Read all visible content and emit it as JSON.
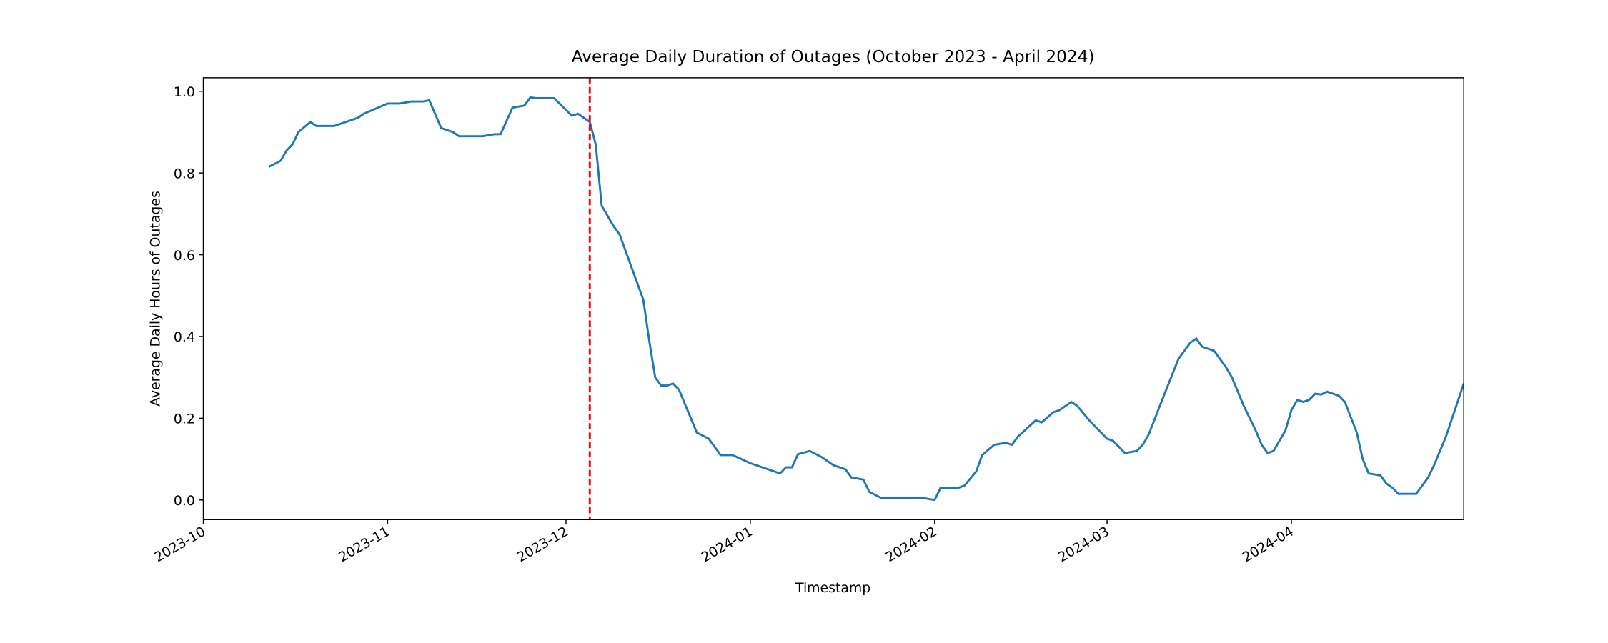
{
  "chart_data": {
    "type": "line",
    "title": "Average Daily Duration of Outages (October 2023 - April 2024)",
    "x_label": "Timestamp",
    "y_label": "Average Daily Hours of Outages",
    "xlim": [
      "2023-10-01",
      "2024-04-30"
    ],
    "ylim": [
      -0.048,
      1.033
    ],
    "xticks": [
      {
        "value": "2023-10-01",
        "label": "2023-10"
      },
      {
        "value": "2023-11-01",
        "label": "2023-11"
      },
      {
        "value": "2023-12-01",
        "label": "2023-12"
      },
      {
        "value": "2024-01-01",
        "label": "2024-01"
      },
      {
        "value": "2024-02-01",
        "label": "2024-02"
      },
      {
        "value": "2024-03-01",
        "label": "2024-03"
      },
      {
        "value": "2024-04-01",
        "label": "2024-04"
      }
    ],
    "yticks": [
      {
        "value": 0,
        "label": "0.0"
      },
      0.2,
      0.4,
      0.6,
      0.8,
      {
        "value": 1,
        "label": "1.0"
      }
    ],
    "vline": {
      "x": "2023-12-05",
      "color": "#ff0000",
      "dashed": true
    },
    "series": [
      {
        "color": "#1f77b4",
        "x": [
          "2023-10-12",
          "2023-10-14",
          "2023-10-15",
          "2023-10-16",
          "2023-10-17",
          "2023-10-19",
          "2023-10-20",
          "2023-10-23",
          "2023-10-24",
          "2023-10-27",
          "2023-10-28",
          "2023-11-01",
          "2023-11-03",
          "2023-11-05",
          "2023-11-07",
          "2023-11-08",
          "2023-11-10",
          "2023-11-12",
          "2023-11-13",
          "2023-11-17",
          "2023-11-19",
          "2023-11-20",
          "2023-11-22",
          "2023-11-24",
          "2023-11-25",
          "2023-11-26",
          "2023-11-29",
          "2023-12-02",
          "2023-12-03",
          "2023-12-05",
          "2023-12-06",
          "2023-12-07",
          "2023-12-09",
          "2023-12-10",
          "2023-12-14",
          "2023-12-15",
          "2023-12-16",
          "2023-12-17",
          "2023-12-18",
          "2023-12-19",
          "2023-12-20",
          "2023-12-23",
          "2023-12-25",
          "2023-12-27",
          "2023-12-29",
          "2024-01-01",
          "2024-01-03",
          "2024-01-06",
          "2024-01-07",
          "2024-01-08",
          "2024-01-09",
          "2024-01-11",
          "2024-01-13",
          "2024-01-15",
          "2024-01-17",
          "2024-01-18",
          "2024-01-20",
          "2024-01-21",
          "2024-01-23",
          "2024-01-26",
          "2024-01-30",
          "2024-02-01",
          "2024-02-02",
          "2024-02-05",
          "2024-02-06",
          "2024-02-08",
          "2024-02-09",
          "2024-02-11",
          "2024-02-13",
          "2024-02-14",
          "2024-02-15",
          "2024-02-18",
          "2024-02-19",
          "2024-02-21",
          "2024-02-22",
          "2024-02-24",
          "2024-02-25",
          "2024-02-27",
          "2024-03-01",
          "2024-03-02",
          "2024-03-04",
          "2024-03-06",
          "2024-03-07",
          "2024-03-08",
          "2024-03-10",
          "2024-03-13",
          "2024-03-15",
          "2024-03-16",
          "2024-03-17",
          "2024-03-19",
          "2024-03-20",
          "2024-03-21",
          "2024-03-22",
          "2024-03-24",
          "2024-03-26",
          "2024-03-27",
          "2024-03-28",
          "2024-03-29",
          "2024-03-31",
          "2024-04-01",
          "2024-04-02",
          "2024-04-03",
          "2024-04-04",
          "2024-04-05",
          "2024-04-06",
          "2024-04-07",
          "2024-04-09",
          "2024-04-10",
          "2024-04-12",
          "2024-04-13",
          "2024-04-14",
          "2024-04-16",
          "2024-04-17",
          "2024-04-18",
          "2024-04-19",
          "2024-04-22",
          "2024-04-24",
          "2024-04-25",
          "2024-04-27",
          "2024-04-30"
        ],
        "values": [
          0.815,
          0.83,
          0.855,
          0.87,
          0.9,
          0.925,
          0.915,
          0.915,
          0.92,
          0.935,
          0.945,
          0.97,
          0.97,
          0.975,
          0.975,
          0.978,
          0.91,
          0.9,
          0.89,
          0.89,
          0.895,
          0.895,
          0.96,
          0.965,
          0.985,
          0.983,
          0.983,
          0.94,
          0.945,
          0.925,
          0.87,
          0.72,
          0.67,
          0.65,
          0.49,
          0.39,
          0.3,
          0.28,
          0.28,
          0.285,
          0.27,
          0.165,
          0.15,
          0.11,
          0.11,
          0.09,
          0.08,
          0.065,
          0.08,
          0.08,
          0.112,
          0.12,
          0.105,
          0.085,
          0.075,
          0.055,
          0.05,
          0.02,
          0.005,
          0.005,
          0.005,
          0.0,
          0.03,
          0.03,
          0.035,
          0.07,
          0.11,
          0.135,
          0.14,
          0.135,
          0.155,
          0.195,
          0.19,
          0.215,
          0.22,
          0.24,
          0.23,
          0.195,
          0.15,
          0.145,
          0.115,
          0.12,
          0.135,
          0.16,
          0.235,
          0.345,
          0.385,
          0.395,
          0.375,
          0.365,
          0.345,
          0.325,
          0.3,
          0.23,
          0.17,
          0.135,
          0.115,
          0.12,
          0.17,
          0.22,
          0.245,
          0.24,
          0.245,
          0.26,
          0.258,
          0.265,
          0.255,
          0.24,
          0.165,
          0.1,
          0.065,
          0.06,
          0.04,
          0.03,
          0.015,
          0.015,
          0.055,
          0.085,
          0.155,
          0.285
        ]
      }
    ]
  }
}
